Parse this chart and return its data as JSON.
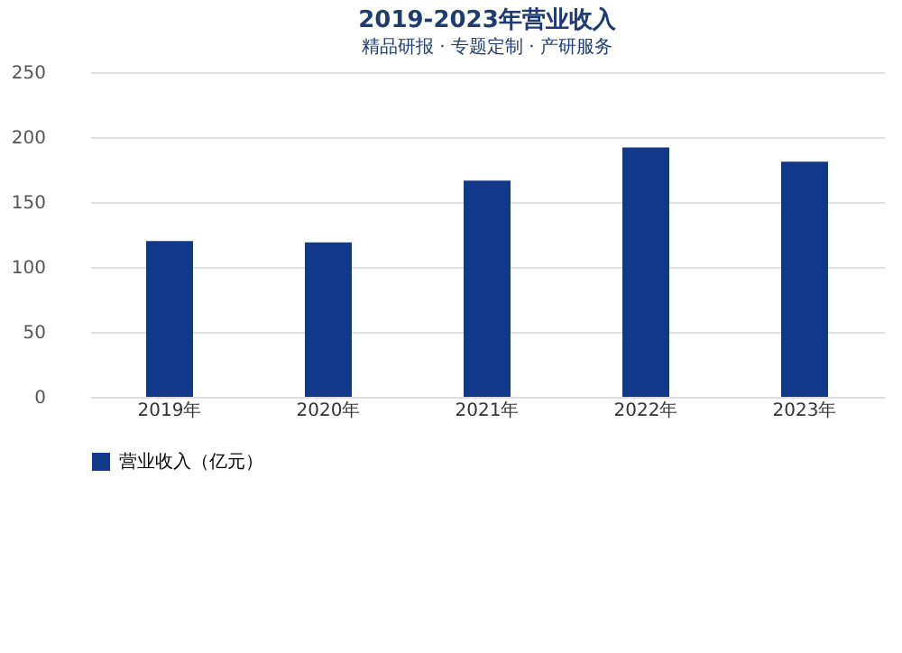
{
  "chart_data": {
    "type": "bar",
    "title": "2019-2023年营业收入",
    "categories": [
      "2019年",
      "2020年",
      "2021年",
      "2022年",
      "2023年"
    ],
    "series": [
      {
        "name": "营业收入（亿元）",
        "color": "#12388a",
        "values": [
          120,
          119,
          166.5,
          192,
          181
        ]
      }
    ],
    "ylim": [
      0,
      250
    ],
    "yticks": [
      0,
      50,
      100,
      150,
      200,
      250
    ],
    "grid": "y",
    "legend": "bottom",
    "annotations": [
      "精品研报 · 专题定制 · 产研服务"
    ]
  }
}
